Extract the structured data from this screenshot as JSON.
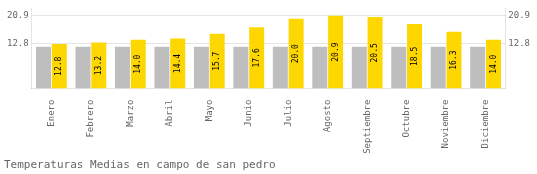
{
  "chart_data": {
    "type": "bar",
    "title": "Temperaturas Medias en campo de san pedro",
    "categories": [
      "Enero",
      "Febrero",
      "Marzo",
      "Abril",
      "Mayo",
      "Junio",
      "Julio",
      "Agosto",
      "Septiembre",
      "Octubre",
      "Noviembre",
      "Diciembre"
    ],
    "series": [
      {
        "color": "#BEBEBE",
        "values": [
          12.0,
          12.0,
          12.0,
          12.0,
          12.0,
          12.0,
          12.0,
          12.0,
          12.0,
          12.0,
          12.0,
          12.0
        ]
      },
      {
        "color": "#FFD700",
        "values": [
          12.8,
          13.2,
          14.0,
          14.4,
          15.7,
          17.6,
          20.0,
          20.9,
          20.5,
          18.5,
          16.3,
          14.0
        ],
        "value_labels": [
          "12.8",
          "13.2",
          "14.0",
          "14.4",
          "15.7",
          "17.6",
          "20.0",
          "20.9",
          "20.5",
          "18.5",
          "16.3",
          "14.0"
        ],
        "data_labels": true
      }
    ],
    "ylim": [
      0,
      23.0
    ],
    "yticks": [
      12.8,
      20.9
    ],
    "y2lim": [
      0,
      23.0
    ],
    "y2ticks": [
      12.8,
      20.9
    ],
    "grid": true
  }
}
